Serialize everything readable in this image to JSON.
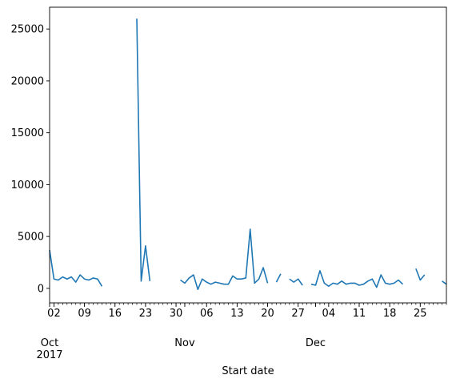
{
  "chart_data": {
    "type": "line",
    "title": "",
    "xlabel": "Start date",
    "ylabel": "",
    "x_start": "2017-10-01",
    "x_end": "2017-12-31",
    "ylim": [
      -1400,
      27100
    ],
    "grid": false,
    "legend": "none",
    "colors": {
      "line": "#1f77b4",
      "axis": "#000000",
      "background": "#ffffff"
    },
    "x_major_ticks": [
      {
        "date": "2017-10-02",
        "label": "02"
      },
      {
        "date": "2017-10-09",
        "label": "09"
      },
      {
        "date": "2017-10-16",
        "label": "16"
      },
      {
        "date": "2017-10-23",
        "label": "23"
      },
      {
        "date": "2017-10-30",
        "label": "30"
      },
      {
        "date": "2017-11-06",
        "label": "06"
      },
      {
        "date": "2017-11-13",
        "label": "13"
      },
      {
        "date": "2017-11-20",
        "label": "20"
      },
      {
        "date": "2017-11-27",
        "label": "27"
      },
      {
        "date": "2017-12-04",
        "label": "04"
      },
      {
        "date": "2017-12-11",
        "label": "11"
      },
      {
        "date": "2017-12-18",
        "label": "18"
      },
      {
        "date": "2017-12-25",
        "label": "25"
      }
    ],
    "x_month_labels": [
      {
        "date": "2017-10-01",
        "label": "Oct",
        "sublabel": "2017"
      },
      {
        "date": "2017-11-01",
        "label": "Nov",
        "sublabel": ""
      },
      {
        "date": "2017-12-01",
        "label": "Dec",
        "sublabel": ""
      }
    ],
    "y_ticks": [
      {
        "value": 0,
        "label": "0"
      },
      {
        "value": 5000,
        "label": "5000"
      },
      {
        "value": 10000,
        "label": "10000"
      },
      {
        "value": 15000,
        "label": "15000"
      },
      {
        "value": 20000,
        "label": "20000"
      },
      {
        "value": 25000,
        "label": "25000"
      }
    ],
    "series": [
      {
        "values": [
          [
            "2017-10-01",
            3700
          ],
          [
            "2017-10-02",
            900
          ],
          [
            "2017-10-03",
            800
          ],
          [
            "2017-10-04",
            1100
          ],
          [
            "2017-10-05",
            900
          ],
          [
            "2017-10-06",
            1100
          ],
          [
            "2017-10-07",
            600
          ],
          [
            "2017-10-08",
            1300
          ],
          [
            "2017-10-09",
            900
          ],
          [
            "2017-10-10",
            800
          ],
          [
            "2017-10-11",
            1000
          ],
          [
            "2017-10-12",
            900
          ],
          [
            "2017-10-13",
            200
          ],
          [
            "2017-10-14",
            null
          ],
          [
            "2017-10-15",
            null
          ],
          [
            "2017-10-16",
            null
          ],
          [
            "2017-10-17",
            null
          ],
          [
            "2017-10-18",
            null
          ],
          [
            "2017-10-19",
            null
          ],
          [
            "2017-10-20",
            null
          ],
          [
            "2017-10-21",
            26000
          ],
          [
            "2017-10-22",
            700
          ],
          [
            "2017-10-23",
            4100
          ],
          [
            "2017-10-24",
            700
          ],
          [
            "2017-10-25",
            null
          ],
          [
            "2017-10-26",
            null
          ],
          [
            "2017-10-27",
            null
          ],
          [
            "2017-10-28",
            null
          ],
          [
            "2017-10-29",
            null
          ],
          [
            "2017-10-30",
            null
          ],
          [
            "2017-10-31",
            800
          ],
          [
            "2017-11-01",
            500
          ],
          [
            "2017-11-02",
            1000
          ],
          [
            "2017-11-03",
            1300
          ],
          [
            "2017-11-04",
            -100
          ],
          [
            "2017-11-05",
            900
          ],
          [
            "2017-11-06",
            600
          ],
          [
            "2017-11-07",
            400
          ],
          [
            "2017-11-08",
            600
          ],
          [
            "2017-11-09",
            500
          ],
          [
            "2017-11-10",
            400
          ],
          [
            "2017-11-11",
            400
          ],
          [
            "2017-11-12",
            1200
          ],
          [
            "2017-11-13",
            900
          ],
          [
            "2017-11-14",
            900
          ],
          [
            "2017-11-15",
            1000
          ],
          [
            "2017-11-16",
            5700
          ],
          [
            "2017-11-17",
            500
          ],
          [
            "2017-11-18",
            900
          ],
          [
            "2017-11-19",
            2000
          ],
          [
            "2017-11-20",
            500
          ],
          [
            "2017-11-21",
            null
          ],
          [
            "2017-11-22",
            600
          ],
          [
            "2017-11-23",
            1400
          ],
          [
            "2017-11-24",
            null
          ],
          [
            "2017-11-25",
            900
          ],
          [
            "2017-11-26",
            600
          ],
          [
            "2017-11-27",
            900
          ],
          [
            "2017-11-28",
            300
          ],
          [
            "2017-11-29",
            null
          ],
          [
            "2017-11-30",
            400
          ],
          [
            "2017-12-01",
            300
          ],
          [
            "2017-12-02",
            1700
          ],
          [
            "2017-12-03",
            500
          ],
          [
            "2017-12-04",
            200
          ],
          [
            "2017-12-05",
            500
          ],
          [
            "2017-12-06",
            400
          ],
          [
            "2017-12-07",
            700
          ],
          [
            "2017-12-08",
            400
          ],
          [
            "2017-12-09",
            500
          ],
          [
            "2017-12-10",
            500
          ],
          [
            "2017-12-11",
            300
          ],
          [
            "2017-12-12",
            400
          ],
          [
            "2017-12-13",
            700
          ],
          [
            "2017-12-14",
            900
          ],
          [
            "2017-12-15",
            100
          ],
          [
            "2017-12-16",
            1300
          ],
          [
            "2017-12-17",
            500
          ],
          [
            "2017-12-18",
            400
          ],
          [
            "2017-12-19",
            500
          ],
          [
            "2017-12-20",
            800
          ],
          [
            "2017-12-21",
            400
          ],
          [
            "2017-12-22",
            null
          ],
          [
            "2017-12-23",
            null
          ],
          [
            "2017-12-24",
            1900
          ],
          [
            "2017-12-25",
            800
          ],
          [
            "2017-12-26",
            1300
          ],
          [
            "2017-12-27",
            null
          ],
          [
            "2017-12-28",
            null
          ],
          [
            "2017-12-29",
            null
          ],
          [
            "2017-12-30",
            700
          ],
          [
            "2017-12-31",
            400
          ]
        ]
      }
    ]
  }
}
